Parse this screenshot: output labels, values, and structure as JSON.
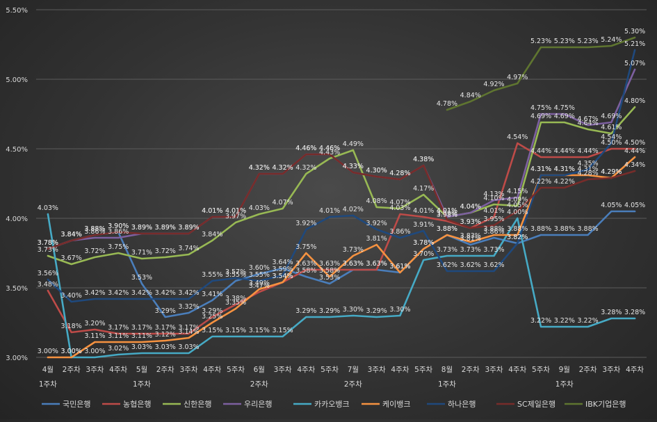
{
  "chart_data": {
    "type": "line",
    "title": "",
    "xlabel": "",
    "ylabel": "",
    "ylim": [
      3.0,
      5.5
    ],
    "yticks": [
      "3.00%",
      "3.50%",
      "4.00%",
      "4.50%",
      "5.00%",
      "5.50%"
    ],
    "categories": [
      "4월 1주차",
      "2주차",
      "3주차",
      "4주차",
      "5월 1주차",
      "2주차",
      "3주차",
      "4주차",
      "5주차",
      "6월 2주차",
      "3주차",
      "4주차",
      "5주차",
      "7월 2주차",
      "3주차",
      "4주차",
      "5주차",
      "8월 1주차",
      "2주차",
      "3주차",
      "4주차",
      "5주차",
      "9월 1주차",
      "2주차",
      "3주차",
      "4주차"
    ],
    "x_tick_line1": [
      "4월",
      "2주차",
      "3주차",
      "4주차",
      "5월",
      "2주차",
      "3주차",
      "4주차",
      "5주차",
      "6월",
      "3주차",
      "4주차",
      "5주차",
      "7월",
      "3주차",
      "4주차",
      "5주차",
      "8월",
      "2주차",
      "3주차",
      "4주차",
      "5주차",
      "9월",
      "2주차",
      "3주차",
      "4주차"
    ],
    "x_tick_line2": [
      "1주차",
      "",
      "",
      "",
      "1주차",
      "",
      "",
      "",
      "",
      "2주차",
      "",
      "",
      "",
      "2주차",
      "",
      "",
      "",
      "1주차",
      "",
      "",
      "",
      "",
      "1주차",
      "",
      "",
      ""
    ],
    "grid": true,
    "legend_position": "bottom",
    "series": [
      {
        "name": "국민은행",
        "color": "#4a7ebb",
        "values": [
          3.78,
          3.84,
          3.88,
          3.9,
          3.53,
          3.29,
          3.32,
          3.41,
          3.55,
          3.6,
          3.64,
          3.58,
          3.53,
          3.63,
          3.63,
          3.61,
          3.78,
          3.88,
          3.81,
          3.86,
          3.82,
          3.88,
          3.88,
          3.88,
          4.05,
          4.05
        ]
      },
      {
        "name": "농협은행",
        "color": "#be4b48",
        "values": [
          3.48,
          3.18,
          3.2,
          3.17,
          3.17,
          3.17,
          3.17,
          3.29,
          3.38,
          3.47,
          3.54,
          3.63,
          3.63,
          3.63,
          3.63,
          4.03,
          4.01,
          3.98,
          3.93,
          4.01,
          4.54,
          4.44,
          4.44,
          4.44,
          4.5,
          4.5
        ]
      },
      {
        "name": "신한은행",
        "color": "#98b954",
        "values": [
          3.73,
          3.67,
          3.72,
          3.75,
          3.71,
          3.72,
          3.74,
          3.84,
          3.97,
          4.03,
          4.07,
          4.32,
          4.43,
          4.49,
          4.08,
          4.07,
          4.17,
          4.01,
          4.04,
          4.1,
          4.09,
          4.69,
          4.69,
          4.64,
          4.61,
          4.8
        ]
      },
      {
        "name": "우리은행",
        "color": "#7d60a0",
        "values": [
          3.78,
          3.84,
          3.86,
          3.86,
          3.89,
          3.89,
          3.89,
          4.01,
          4.01,
          4.32,
          4.32,
          4.46,
          4.46,
          4.33,
          4.3,
          4.28,
          4.38,
          4.01,
          4.04,
          4.13,
          4.15,
          4.75,
          4.75,
          4.67,
          4.69,
          5.07
        ]
      },
      {
        "name": "카카오뱅크",
        "color": "#46aac5",
        "values": [
          4.03,
          3.0,
          3.0,
          3.02,
          3.03,
          3.03,
          3.03,
          3.15,
          3.15,
          3.15,
          3.15,
          3.29,
          3.29,
          3.3,
          3.29,
          3.3,
          3.7,
          3.73,
          3.73,
          3.73,
          4.0,
          3.22,
          3.22,
          3.22,
          3.28,
          3.28
        ]
      },
      {
        "name": "케이뱅크",
        "color": "#f69240",
        "values": [
          3.0,
          3.0,
          3.11,
          3.11,
          3.11,
          3.12,
          3.14,
          3.25,
          3.35,
          3.49,
          3.54,
          3.75,
          3.58,
          3.73,
          3.81,
          3.61,
          3.78,
          3.88,
          3.83,
          3.88,
          3.88,
          4.31,
          4.31,
          4.31,
          4.29,
          4.44
        ]
      },
      {
        "name": "하나은행",
        "color": "#1f497d",
        "values": [
          3.56,
          3.4,
          3.42,
          3.42,
          3.42,
          3.42,
          3.42,
          3.55,
          3.57,
          3.55,
          3.59,
          3.92,
          4.01,
          4.02,
          3.92,
          3.86,
          3.91,
          3.62,
          3.62,
          3.62,
          3.82,
          4.31,
          4.31,
          4.35,
          4.54,
          5.21
        ]
      },
      {
        "name": "SC제일은행",
        "color": "#772c2a",
        "values": [
          3.78,
          3.84,
          3.88,
          3.9,
          3.89,
          3.89,
          3.89,
          4.01,
          4.01,
          4.32,
          4.32,
          4.46,
          4.46,
          4.33,
          4.3,
          4.28,
          4.38,
          3.99,
          3.93,
          3.95,
          4.05,
          4.22,
          4.22,
          4.28,
          4.29,
          4.34
        ]
      },
      {
        "name": "IBK기업은행",
        "color": "#5f7530",
        "values": [
          null,
          null,
          null,
          null,
          null,
          null,
          null,
          null,
          null,
          null,
          null,
          null,
          null,
          null,
          null,
          null,
          null,
          4.78,
          4.84,
          4.92,
          4.97,
          5.23,
          5.23,
          5.23,
          5.24,
          5.3
        ]
      }
    ]
  }
}
